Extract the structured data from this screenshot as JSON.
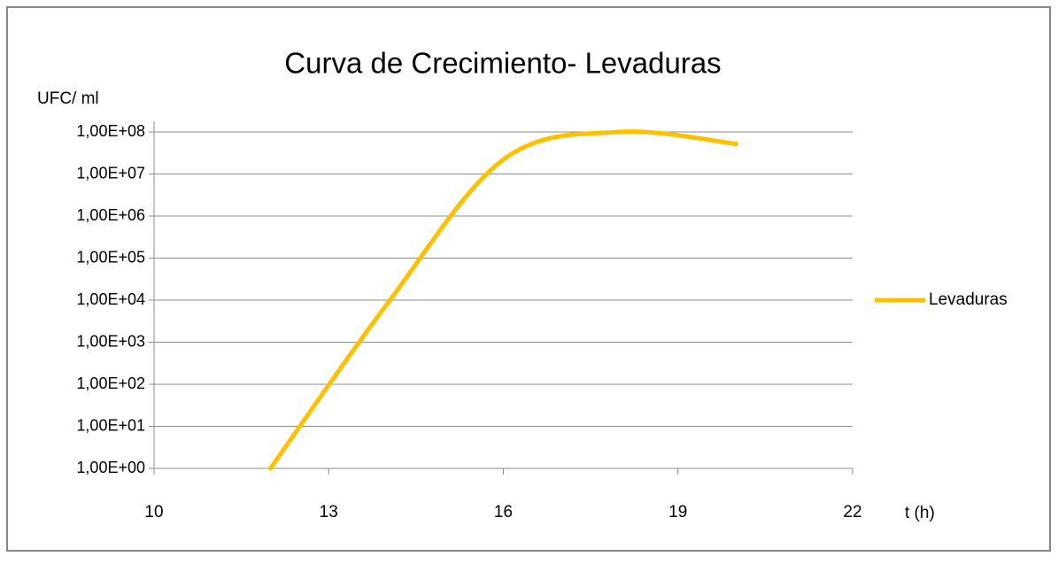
{
  "chart_data": {
    "type": "line",
    "title": "Curva de Crecimiento- Levaduras",
    "y_label": "UFC/ ml",
    "x_label": "t (h)",
    "x": [
      12,
      14,
      16,
      18,
      20
    ],
    "series": [
      {
        "name": "Levaduras",
        "color": "#ffc000",
        "values": [
          1,
          8000,
          22000000,
          100000000,
          52000000
        ]
      }
    ],
    "xlim": [
      10,
      22
    ],
    "xticks": [
      10,
      13,
      16,
      19,
      22
    ],
    "ylim": [
      1,
      100000000
    ],
    "log_y": true,
    "yticks": [
      {
        "value": 1,
        "label": "1,00E+00"
      },
      {
        "value": 10,
        "label": "1,00E+01"
      },
      {
        "value": 100,
        "label": "1,00E+02"
      },
      {
        "value": 1000,
        "label": "1,00E+03"
      },
      {
        "value": 10000,
        "label": "1,00E+04"
      },
      {
        "value": 100000,
        "label": "1,00E+05"
      },
      {
        "value": 1000000,
        "label": "1,00E+06"
      },
      {
        "value": 10000000,
        "label": "1,00E+07"
      },
      {
        "value": 100000000,
        "label": "1,00E+08"
      }
    ],
    "grid": true,
    "legend": "right"
  }
}
